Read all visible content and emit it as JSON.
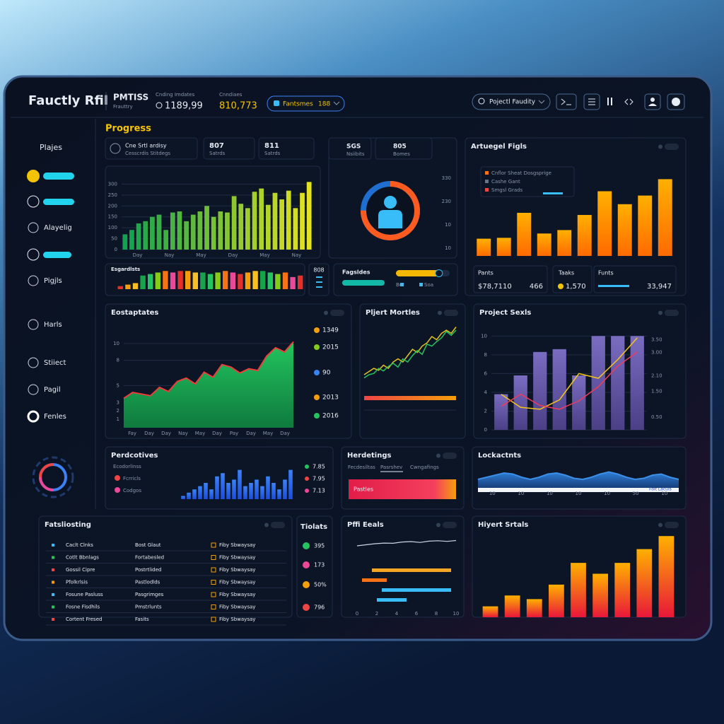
{
  "header": {
    "title": "Fauctly Rfil",
    "brand": "PMTISS",
    "brand_sub": "Frauttry",
    "stat1_label": "Cnding Imdates",
    "stat1_value": "1189,99",
    "stat2_label": "Cnndiaes",
    "stat2_value": "810,773",
    "dropdown": "Fantsmes",
    "dropdown_value": "188",
    "search": "Pojectl Faudity"
  },
  "sidebar": {
    "title": "Plajes",
    "items": [
      "Alayelig",
      "Pigjls",
      "Harls",
      "Stiiect",
      "Pagil",
      "Fenles"
    ]
  },
  "panels": [
    {
      "title": "Progress",
      "cards": [
        {
          "label": "Cne Srtl ardisy",
          "sub": "Cesscrdis Stitdegs"
        },
        {
          "label": "807",
          "sub": "Satrds"
        },
        {
          "label": "811",
          "sub": "Satrds"
        }
      ],
      "chart": {
        "type": "bar",
        "values": [
          70,
          90,
          120,
          130,
          150,
          160,
          90,
          170,
          175,
          130,
          160,
          175,
          200,
          150,
          175,
          170,
          245,
          210,
          190,
          265,
          280,
          205,
          260,
          230,
          270,
          190,
          260,
          310
        ],
        "color": "#12a150",
        "color2": "#e4e31c",
        "gradient": "x",
        "ylim": [
          0,
          350
        ],
        "yticks": [
          0,
          50,
          100,
          150,
          200,
          250,
          300
        ],
        "grid": true,
        "xlabels": [
          "Day",
          "Nay",
          "May",
          "Day",
          "May",
          "Nay"
        ]
      }
    },
    {
      "title": "Esgardlsts",
      "side": "808",
      "chart": {
        "type": "bar",
        "values": [
          2,
          3,
          4,
          9,
          10,
          11,
          12,
          11,
          12,
          12,
          11,
          11,
          10,
          11,
          12,
          11,
          10,
          11,
          12,
          12,
          11,
          10,
          11,
          8,
          9
        ],
        "ylim": [
          0,
          14
        ],
        "palette": [
          "#e0312b",
          "#f59e0b",
          "#fbbf24",
          "#16a34a",
          "#22c55e",
          "#84cc16",
          "#f97316",
          "#ec4899"
        ]
      }
    },
    {
      "cards": [
        {
          "label": "SGS",
          "sub": "Nsiibits"
        },
        {
          "label": "805",
          "sub": "Bomes"
        }
      ],
      "side_labels": [
        "330",
        "230",
        "10",
        "10"
      ],
      "chart": {
        "type": "gauge",
        "value": 75,
        "max": 100,
        "color": "#ff5a1f",
        "track": "#1f6fd1"
      }
    },
    {
      "title": "Fagsldes",
      "tags": [
        "Bo",
        "Soa"
      ],
      "chart": {
        "type": "progress",
        "value": 80,
        "max": 100,
        "color": "#f5b800"
      }
    },
    {
      "title": "Artuegel Figls",
      "legend": [
        {
          "label": "Cnflor Sheat Dosgsprige",
          "color": "#f97316"
        },
        {
          "label": "Cashe Gant",
          "color": "#64748b"
        },
        {
          "label": "Smgsl Grads",
          "color": "#ef4444"
        }
      ],
      "stats": [
        {
          "label": "Pants",
          "value": "$78,7110"
        },
        {
          "value": "466"
        },
        {
          "label": "Taaks",
          "value": "1,570"
        },
        {
          "label": "Funts",
          "value": "33,947"
        }
      ],
      "chart": {
        "type": "bar",
        "values": [
          4,
          4.2,
          10,
          5.2,
          6,
          9.5,
          15,
          12,
          14,
          17.8
        ],
        "color": "#ff6a00",
        "color2": "#ffb000",
        "gradient": "y",
        "ylim": [
          0,
          20
        ]
      }
    },
    {
      "title": "Eostaptates",
      "legend": [
        {
          "label": "1349",
          "color": "#f59e0b"
        },
        {
          "label": "2015",
          "color": "#84cc16"
        },
        {
          "label": "90",
          "color": "#3b82f6"
        },
        {
          "label": "2013",
          "color": "#f59e0b"
        },
        {
          "label": "2016",
          "color": "#22c55e"
        }
      ],
      "chart": {
        "type": "area",
        "series": [
          {
            "color": "#ef3b3b",
            "values": [
              3.5,
              4.2,
              4.0,
              3.8,
              4.8,
              4.3,
              5.5,
              5.9,
              5.2,
              6.6,
              6.0,
              7.5,
              7.2,
              6.5,
              7.0,
              6.8,
              8.5,
              9.5,
              9.0,
              10.2
            ]
          }
        ],
        "fill": "#0f7a3e",
        "fill2": "#22c55e",
        "ylim": [
          0,
          12
        ],
        "yticks": [
          1,
          2,
          3,
          5,
          8,
          10
        ],
        "grid": true,
        "xlabels": [
          "Fay",
          "Day",
          "Day",
          "Nay",
          "May",
          "Day",
          "Pay",
          "Day",
          "May",
          "Day"
        ]
      }
    },
    {
      "title": "Pljert Mortles",
      "chart": {
        "type": "line",
        "series": [
          {
            "color": "#e5c21a",
            "values": [
              2,
              2.5,
              3,
              2.7,
              3.5,
              3,
              4,
              4.5,
              4,
              5,
              6,
              5.5,
              6.5,
              7,
              8,
              7.5,
              8.5,
              9,
              8.5,
              9.5
            ]
          },
          {
            "color": "#22c55e",
            "values": [
              1.5,
              2,
              2.2,
              3,
              2.6,
              3.3,
              3.8,
              3.2,
              4.5,
              4,
              5,
              5.8,
              5.2,
              6.8,
              6.5,
              7.2,
              7.8,
              8.8,
              8.2,
              9
            ]
          }
        ],
        "ylim": [
          0,
          10
        ]
      }
    },
    {
      "title": "Project Sexls",
      "chart": {
        "type": "combo",
        "values": [
          3.8,
          5.8,
          8.3,
          8.6,
          5.8,
          10,
          10,
          10
        ],
        "color": "#4b3f86",
        "color2": "#7a6cc0",
        "gradient": "y",
        "series": [
          {
            "color": "#f5c518",
            "values": [
              3.8,
              2.4,
              2.2,
              3.2,
              6,
              5.5,
              7.5,
              9.8
            ]
          },
          {
            "color": "#ef3b5d",
            "values": [
              2.5,
              3.8,
              2.6,
              2.2,
              3.1,
              4.6,
              6.8,
              8.3
            ]
          }
        ],
        "ylim": [
          0,
          11
        ],
        "yticks": [
          0,
          2,
          4,
          6,
          8,
          10
        ],
        "grid": true,
        "y2lim": [
          0,
          4
        ],
        "y2ticks": [
          {
            "value": 0.5,
            "label": "0.50"
          },
          {
            "value": 1.5,
            "label": "1.50"
          },
          {
            "value": 2.1,
            "label": "2.10"
          },
          {
            "value": 3,
            "label": "3.00"
          },
          {
            "value": 3.5,
            "label": "3.50"
          }
        ]
      }
    },
    {
      "title": "Perdcotives",
      "legend": [
        {
          "label": "Ecodorlinss"
        },
        {
          "label": "Fcrricls",
          "color": "#ef4444"
        },
        {
          "label": "Codgos",
          "color": "#ec4899"
        }
      ],
      "side_values": [
        {
          "label": "7.85",
          "color": "#22c55e"
        },
        {
          "label": "7.95",
          "color": "#ef4444"
        },
        {
          "label": "7.13",
          "color": "#ec4899"
        }
      ],
      "chart": {
        "type": "bar",
        "values": [
          1,
          2,
          3,
          4,
          5,
          3,
          7,
          8,
          5,
          6,
          9,
          4,
          5,
          6,
          4,
          7,
          5,
          3,
          6,
          9
        ],
        "color": "#1d4ed8",
        "color2": "#3b82f6",
        "gradient": "y",
        "ylim": [
          0,
          10
        ]
      }
    },
    {
      "title": "Herdetings",
      "tabs": [
        "Fecdesiltas",
        "Pasrshev",
        "Cwngafings"
      ],
      "bar_label": "Pastles"
    },
    {
      "title": "Lockactnts",
      "pill": "Foit Laculs",
      "chart": {
        "type": "area",
        "series": [
          {
            "color": "#3b8fe8",
            "values": [
              4,
              5,
              6,
              7,
              6.5,
              5,
              4,
              5,
              6.5,
              7,
              6,
              4.5,
              4,
              5,
              6.5,
              7.5,
              6.5,
              5,
              4,
              4.5,
              6,
              6.5,
              5,
              4
            ]
          }
        ],
        "fill": "#163e7a",
        "fill2": "#2f7fd8",
        "ylim": [
          0,
          10
        ],
        "xlabels": [
          "10",
          "10",
          "10",
          "10",
          "10",
          "50",
          "10"
        ]
      }
    },
    {
      "title": "Fatsliosting",
      "rows": [
        [
          "Caclt Clnks",
          "Bost Glaut",
          "Fiby Sbwaysay"
        ],
        [
          "Cotlt Bbnlags",
          "Fortabesled",
          "Fiby Sbwaysay"
        ],
        [
          "Gossil Cipre",
          "Postrtlided",
          "Fiby Sbwaysay"
        ],
        [
          "Pfolkrlsis",
          "Pastlodlds",
          "Fiby Sbwaysay"
        ],
        [
          "Fosune Pasluss",
          "Pasgrimges",
          "Fiby Sbwaysay"
        ],
        [
          "Fosne Fisdhils",
          "Pmstrlunts",
          "Fiby Sbwaysay"
        ],
        [
          "Cortent Fresed",
          "Fasits",
          "Fiby Sbwaysay"
        ]
      ]
    },
    {
      "title": "Tiolats",
      "items": [
        {
          "label": "395",
          "color": "#22c55e"
        },
        {
          "label": "173",
          "color": "#ec4899"
        },
        {
          "label": "50%",
          "color": "#f59e0b"
        },
        {
          "label": "796",
          "color": "#ef4444"
        }
      ]
    },
    {
      "title": "Pffi Eeals",
      "chart": {
        "type": "gantt",
        "line": [
          6,
          6.5,
          7,
          7.3,
          7.2,
          7.8,
          8,
          7.6,
          8.2,
          8.4,
          8.1,
          8.5
        ],
        "line_color": "#cbd5e1",
        "ylim": [
          0,
          10
        ],
        "xlim": [
          0,
          10
        ],
        "xticks": [
          0,
          2,
          4,
          6,
          8,
          10
        ],
        "tasks": [
          {
            "start": 1.5,
            "end": 9.5,
            "color": "#f5a524"
          },
          {
            "start": 0.5,
            "end": 3,
            "color": "#f97316"
          },
          {
            "start": 2.5,
            "end": 9.5,
            "color": "#38bdf8"
          },
          {
            "start": 2,
            "end": 5,
            "color": "#38bdf8"
          }
        ]
      }
    },
    {
      "title": "Hiyert Srtals",
      "chart": {
        "type": "bar",
        "values": [
          1.5,
          3,
          2.5,
          4.5,
          7.5,
          6,
          7.5,
          9.4,
          11.2
        ],
        "color": "#e8173a",
        "color2": "#ffb000",
        "gradient": "y",
        "ylim": [
          0,
          12
        ]
      }
    }
  ]
}
